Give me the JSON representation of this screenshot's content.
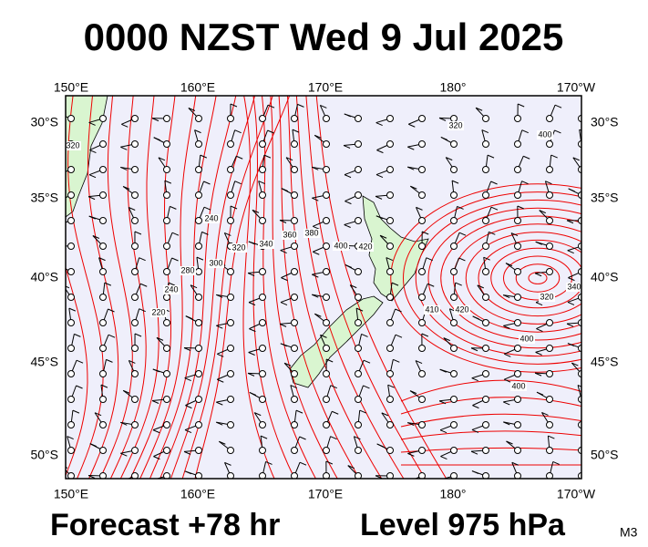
{
  "header": {
    "title": "0000 NZST Wed 9 Jul 2025"
  },
  "map": {
    "lon_labels": [
      "150°E",
      "160°E",
      "170°E",
      "180°",
      "170°W"
    ],
    "lat_labels": [
      "30°S",
      "35°S",
      "40°S",
      "45°S",
      "50°S"
    ],
    "contour_labels": [
      "320",
      "320",
      "240",
      "280",
      "300",
      "320",
      "340",
      "360",
      "380",
      "400",
      "420",
      "220",
      "240",
      "410",
      "420",
      "400",
      "320",
      "340",
      "400",
      "400"
    ]
  },
  "footer": {
    "forecast": "Forecast +78 hr",
    "level": "Level 975 hPa",
    "model": "M3"
  }
}
